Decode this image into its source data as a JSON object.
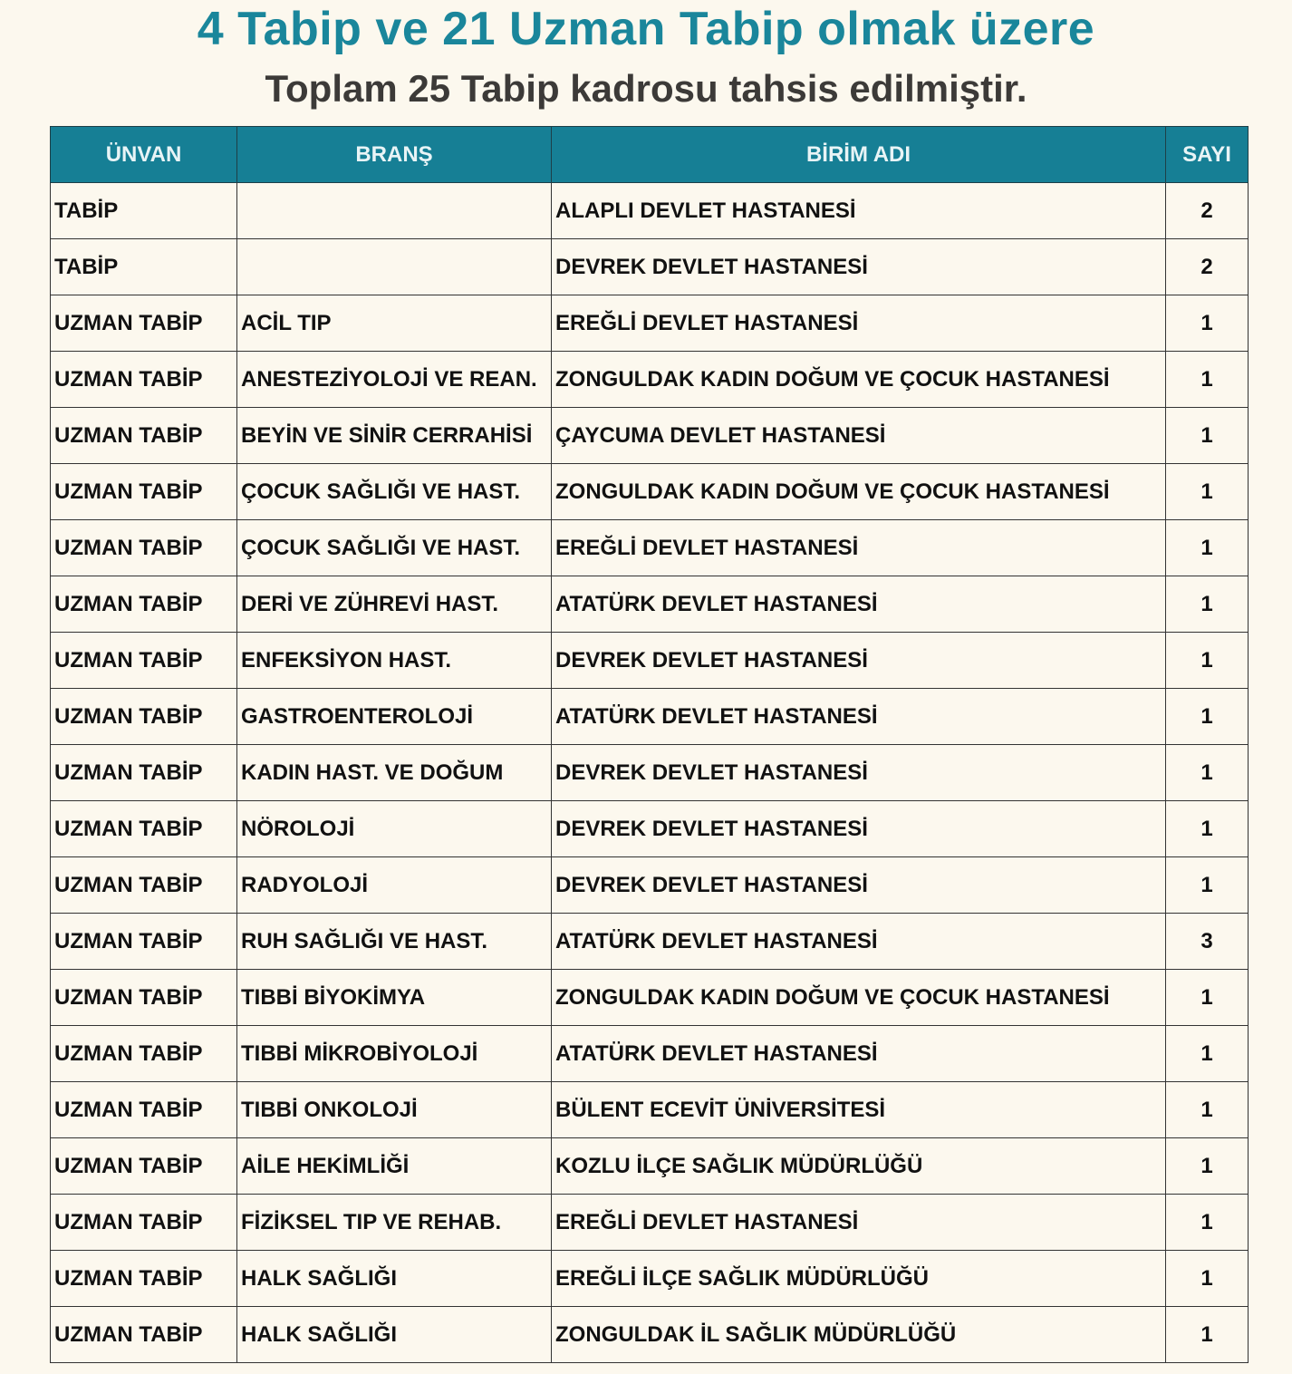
{
  "header": {
    "title": "4 Tabip ve 21 Uzman Tabip olmak üzere",
    "subtitle": "Toplam 25 Tabip kadrosu tahsis edilmiştir."
  },
  "colors": {
    "accent": "#167f95",
    "background": "#fcf8ee"
  },
  "table": {
    "columns": [
      "ÜNVAN",
      "BRANŞ",
      "BİRİM ADI",
      "SAYI"
    ],
    "rows": [
      [
        "TABİP",
        "",
        "ALAPLI DEVLET HASTANESİ",
        "2"
      ],
      [
        "TABİP",
        "",
        "DEVREK DEVLET HASTANESİ",
        "2"
      ],
      [
        "UZMAN TABİP",
        "ACİL TIP",
        "EREĞLİ DEVLET HASTANESİ",
        "1"
      ],
      [
        "UZMAN TABİP",
        "ANESTEZİYOLOJİ VE REAN.",
        "ZONGULDAK KADIN DOĞUM VE ÇOCUK HASTANESİ",
        "1"
      ],
      [
        "UZMAN TABİP",
        "BEYİN VE SİNİR CERRAHİSİ",
        "ÇAYCUMA DEVLET HASTANESİ",
        "1"
      ],
      [
        "UZMAN TABİP",
        "ÇOCUK SAĞLIĞI VE HAST.",
        "ZONGULDAK KADIN DOĞUM VE ÇOCUK HASTANESİ",
        "1"
      ],
      [
        "UZMAN TABİP",
        "ÇOCUK SAĞLIĞI VE HAST.",
        "EREĞLİ DEVLET HASTANESİ",
        "1"
      ],
      [
        "UZMAN TABİP",
        "DERİ VE ZÜHREVİ HAST.",
        "ATATÜRK DEVLET HASTANESİ",
        "1"
      ],
      [
        "UZMAN TABİP",
        "ENFEKSİYON HAST.",
        "DEVREK DEVLET HASTANESİ",
        "1"
      ],
      [
        "UZMAN TABİP",
        "GASTROENTEROLOJİ",
        "ATATÜRK DEVLET HASTANESİ",
        "1"
      ],
      [
        "UZMAN TABİP",
        "KADIN HAST. VE DOĞUM",
        "DEVREK DEVLET HASTANESİ",
        "1"
      ],
      [
        "UZMAN TABİP",
        "NÖROLOJİ",
        "DEVREK DEVLET HASTANESİ",
        "1"
      ],
      [
        "UZMAN TABİP",
        "RADYOLOJİ",
        "DEVREK DEVLET HASTANESİ",
        "1"
      ],
      [
        "UZMAN TABİP",
        "RUH SAĞLIĞI VE HAST.",
        "ATATÜRK DEVLET HASTANESİ",
        "3"
      ],
      [
        "UZMAN TABİP",
        "TIBBİ BİYOKİMYA",
        "ZONGULDAK KADIN DOĞUM VE ÇOCUK HASTANESİ",
        "1"
      ],
      [
        "UZMAN TABİP",
        "TIBBİ MİKROBİYOLOJİ",
        "ATATÜRK DEVLET HASTANESİ",
        "1"
      ],
      [
        "UZMAN TABİP",
        "TIBBİ ONKOLOJİ",
        "BÜLENT ECEVİT ÜNİVERSİTESİ",
        "1"
      ],
      [
        "UZMAN TABİP",
        "AİLE HEKİMLİĞİ",
        "KOZLU İLÇE SAĞLIK MÜDÜRLÜĞÜ",
        "1"
      ],
      [
        "UZMAN TABİP",
        "FİZİKSEL TIP VE REHAB.",
        "EREĞLİ DEVLET HASTANESİ",
        "1"
      ],
      [
        "UZMAN TABİP",
        "HALK SAĞLIĞI",
        "EREĞLİ İLÇE SAĞLIK MÜDÜRLÜĞÜ",
        "1"
      ],
      [
        "UZMAN TABİP",
        "HALK SAĞLIĞI",
        "ZONGULDAK İL SAĞLIK MÜDÜRLÜĞÜ",
        "1"
      ]
    ]
  }
}
